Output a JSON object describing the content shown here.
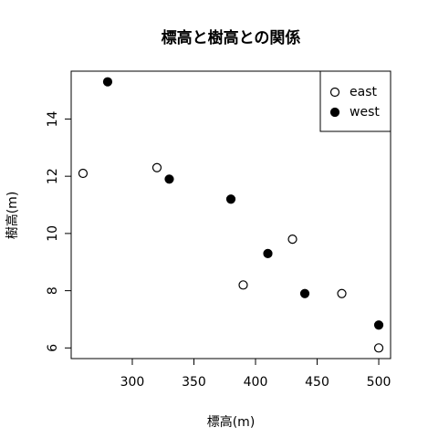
{
  "chart_data": {
    "type": "scatter",
    "title": "標高と樹高との関係",
    "x_label": "標高(m)",
    "y_label": "樹高(m)",
    "series": [
      {
        "name": "east",
        "color": "#000000",
        "filled": false,
        "x": [
          260,
          320,
          390,
          430,
          470,
          500
        ],
        "values": [
          12.1,
          12.3,
          8.2,
          9.8,
          7.9,
          6.0
        ]
      },
      {
        "name": "west",
        "color": "#000000",
        "filled": true,
        "x": [
          280,
          330,
          380,
          410,
          440,
          500
        ],
        "values": [
          15.3,
          11.9,
          11.2,
          9.3,
          7.9,
          6.8
        ]
      }
    ],
    "xlim": [
      250.4,
      509.6
    ],
    "xticks": [
      300,
      350,
      400,
      450,
      500
    ],
    "ylim": [
      5.628,
      15.672
    ],
    "yticks": [
      6,
      8,
      10,
      12,
      14
    ],
    "legend": "topright",
    "grid": false
  }
}
